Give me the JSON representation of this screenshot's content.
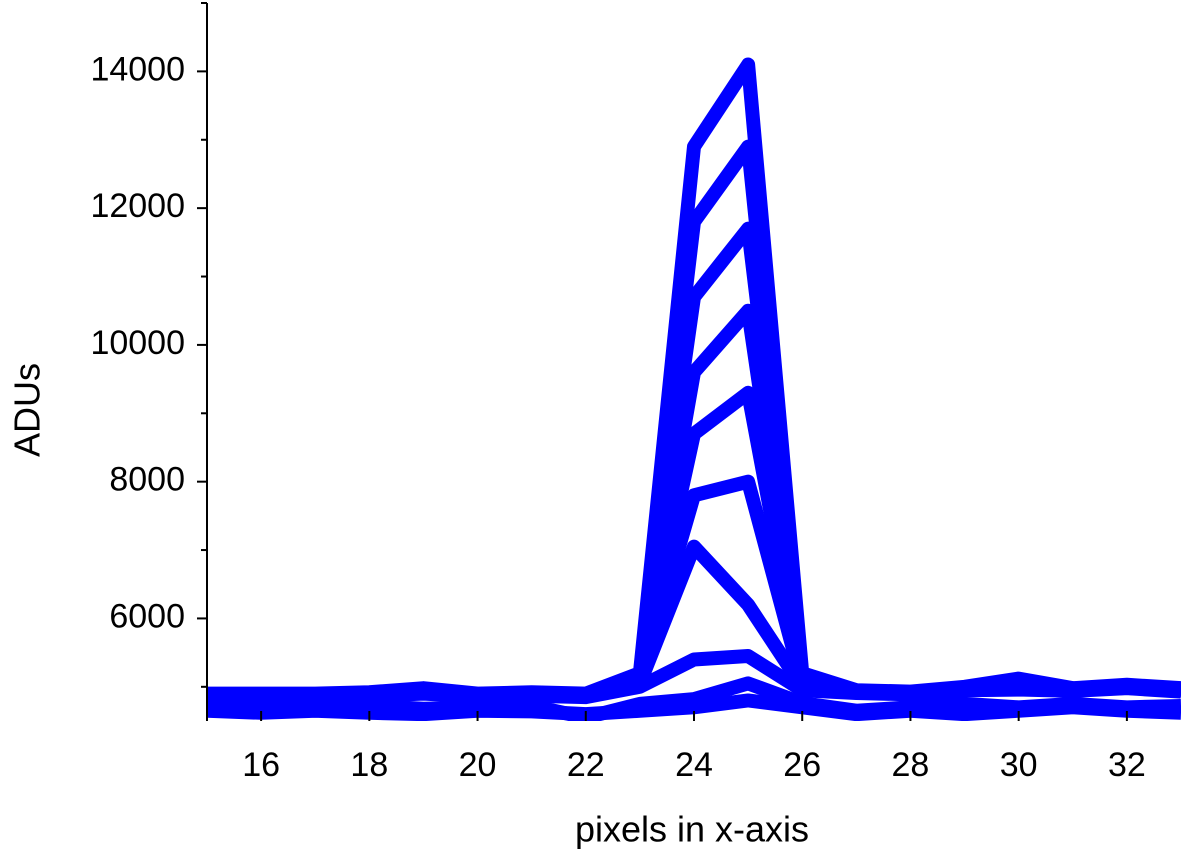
{
  "chart_data": {
    "type": "line",
    "x_label": "pixels in x-axis",
    "y_label": "ADUs",
    "x": [
      15,
      16,
      17,
      18,
      19,
      20,
      21,
      22,
      23,
      24,
      25,
      26,
      27,
      28,
      29,
      30,
      31,
      32,
      33
    ],
    "xlim": [
      15,
      33
    ],
    "xticks": [
      16,
      18,
      20,
      22,
      24,
      26,
      28,
      30,
      32
    ],
    "ylim": [
      4500,
      15000
    ],
    "yticks": [
      6000,
      8000,
      10000,
      12000,
      14000
    ],
    "yminorticks": [
      5000,
      7000,
      9000,
      11000,
      13000,
      15000
    ],
    "series": [
      {
        "color": "#0000ff",
        "values": [
          4900,
          4900,
          4900,
          4920,
          4980,
          4900,
          4920,
          4900,
          5200,
          12900,
          14100,
          5200,
          4950,
          4930,
          5000,
          5120,
          4980,
          5030,
          4980
        ]
      },
      {
        "color": "#0000ff",
        "values": [
          4890,
          4890,
          4890,
          4910,
          4960,
          4895,
          4910,
          4890,
          5170,
          11800,
          12900,
          5170,
          4940,
          4925,
          4990,
          5090,
          4975,
          5020,
          4970
        ]
      },
      {
        "color": "#0000ff",
        "values": [
          4880,
          4885,
          4880,
          4900,
          4950,
          4890,
          4900,
          4880,
          5140,
          10700,
          11700,
          5140,
          4935,
          4920,
          4980,
          5060,
          4970,
          5010,
          4960
        ]
      },
      {
        "color": "#0000ff",
        "values": [
          4870,
          4880,
          4875,
          4895,
          4940,
          4885,
          4895,
          4875,
          5110,
          9600,
          10500,
          5110,
          4930,
          4915,
          4975,
          5040,
          4965,
          5000,
          4955
        ]
      },
      {
        "color": "#0000ff",
        "values": [
          4860,
          4875,
          4870,
          4890,
          4930,
          4880,
          4890,
          4870,
          5090,
          8700,
          9300,
          5080,
          4925,
          4910,
          4970,
          5020,
          4960,
          4995,
          4950
        ]
      },
      {
        "color": "#0000ff",
        "values": [
          4850,
          4870,
          4865,
          4885,
          4920,
          4875,
          4885,
          4865,
          5070,
          7800,
          8000,
          5050,
          4920,
          4905,
          4965,
          5000,
          4955,
          4990,
          4945
        ]
      },
      {
        "color": "#0000ff",
        "values": [
          4840,
          4865,
          4860,
          4880,
          4910,
          4870,
          4880,
          4860,
          5050,
          7050,
          6200,
          5000,
          4915,
          4900,
          4960,
          4980,
          4950,
          4985,
          4940
        ]
      },
      {
        "color": "#0000ff",
        "values": [
          4830,
          4850,
          4850,
          4870,
          4900,
          4860,
          4870,
          4850,
          5000,
          5400,
          5450,
          4950,
          4910,
          4890,
          4950,
          4960,
          4940,
          4980,
          4930
        ]
      },
      {
        "color": "#0000ff",
        "values": [
          4800,
          4700,
          4750,
          4720,
          4680,
          4700,
          4720,
          4550,
          4750,
          4820,
          5050,
          4760,
          4650,
          4700,
          4750,
          4700,
          4750,
          4700,
          4720
        ]
      },
      {
        "color": "#0000ff",
        "values": [
          4650,
          4620,
          4650,
          4620,
          4600,
          4650,
          4640,
          4600,
          4650,
          4700,
          4800,
          4700,
          4600,
          4650,
          4600,
          4650,
          4700,
          4650,
          4620
        ]
      }
    ]
  }
}
